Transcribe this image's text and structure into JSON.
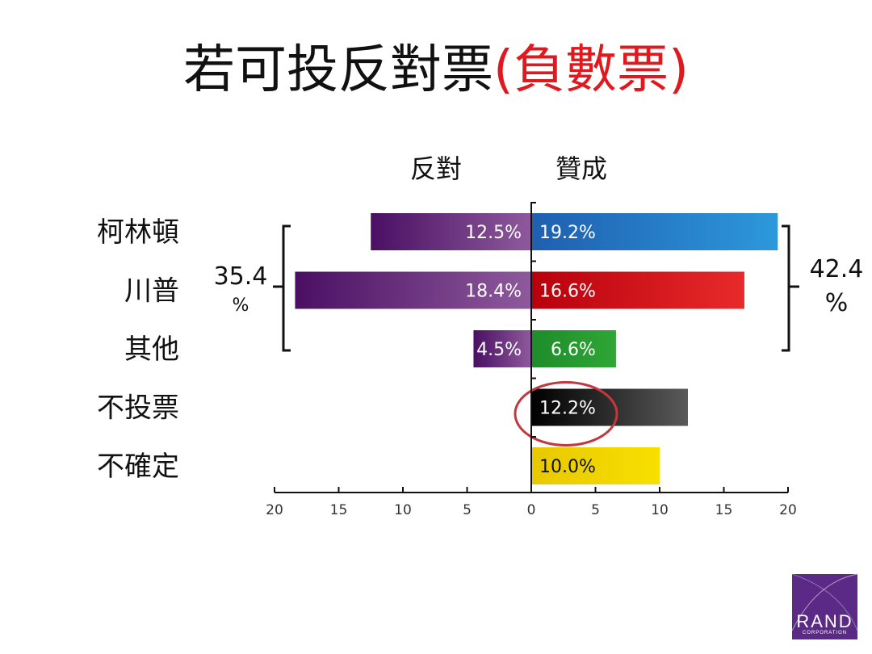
{
  "title": {
    "main": "若可投反對票",
    "highlight": "(負數票)"
  },
  "chart_data": {
    "type": "bar",
    "orientation": "horizontal-diverging",
    "categories": [
      "柯林頓",
      "川普",
      "其他",
      "不投票",
      "不確定"
    ],
    "column_headers": {
      "left": "反對",
      "right": "贊成"
    },
    "series": [
      {
        "name": "反對",
        "values": [
          12.5,
          18.4,
          4.5,
          null,
          null
        ],
        "labels": [
          "12.5%",
          "18.4%",
          "4.5%",
          "",
          ""
        ]
      },
      {
        "name": "贊成",
        "values": [
          19.2,
          16.6,
          6.6,
          12.2,
          10.0
        ],
        "labels": [
          "19.2%",
          "16.6%",
          "6.6%",
          "12.2%",
          "10.0%"
        ]
      }
    ],
    "bar_colors": {
      "oppose": [
        "#4a0f63",
        "#8e5a9c"
      ],
      "support": [
        [
          "#1f5fb0",
          "#2d98dc"
        ],
        [
          "#b8000c",
          "#e82a2a"
        ],
        [
          "#1e8c2a",
          "#2fa636"
        ],
        [
          "#000000",
          "#5a5a5a"
        ],
        [
          "#e8c800",
          "#f7e000"
        ]
      ]
    },
    "xlim": [
      -20,
      20
    ],
    "xticks": [
      {
        "value": -20,
        "label": "20"
      },
      {
        "value": -15,
        "label": "15"
      },
      {
        "value": -10,
        "label": "10"
      },
      {
        "value": -5,
        "label": "5"
      },
      {
        "value": 0,
        "label": "0"
      },
      {
        "value": 5,
        "label": "5"
      },
      {
        "value": 10,
        "label": "10"
      },
      {
        "value": 15,
        "label": "15"
      },
      {
        "value": 20,
        "label": "20"
      }
    ],
    "brackets": {
      "left": {
        "number": "35.4",
        "unit": "%"
      },
      "right": {
        "number": "42.4",
        "unit": "%"
      }
    },
    "highlight_circle_category": "不投票",
    "highlight_color": "#c0393f",
    "grid": false
  },
  "logo": {
    "name": "RAND",
    "subtitle": "CORPORATION"
  }
}
